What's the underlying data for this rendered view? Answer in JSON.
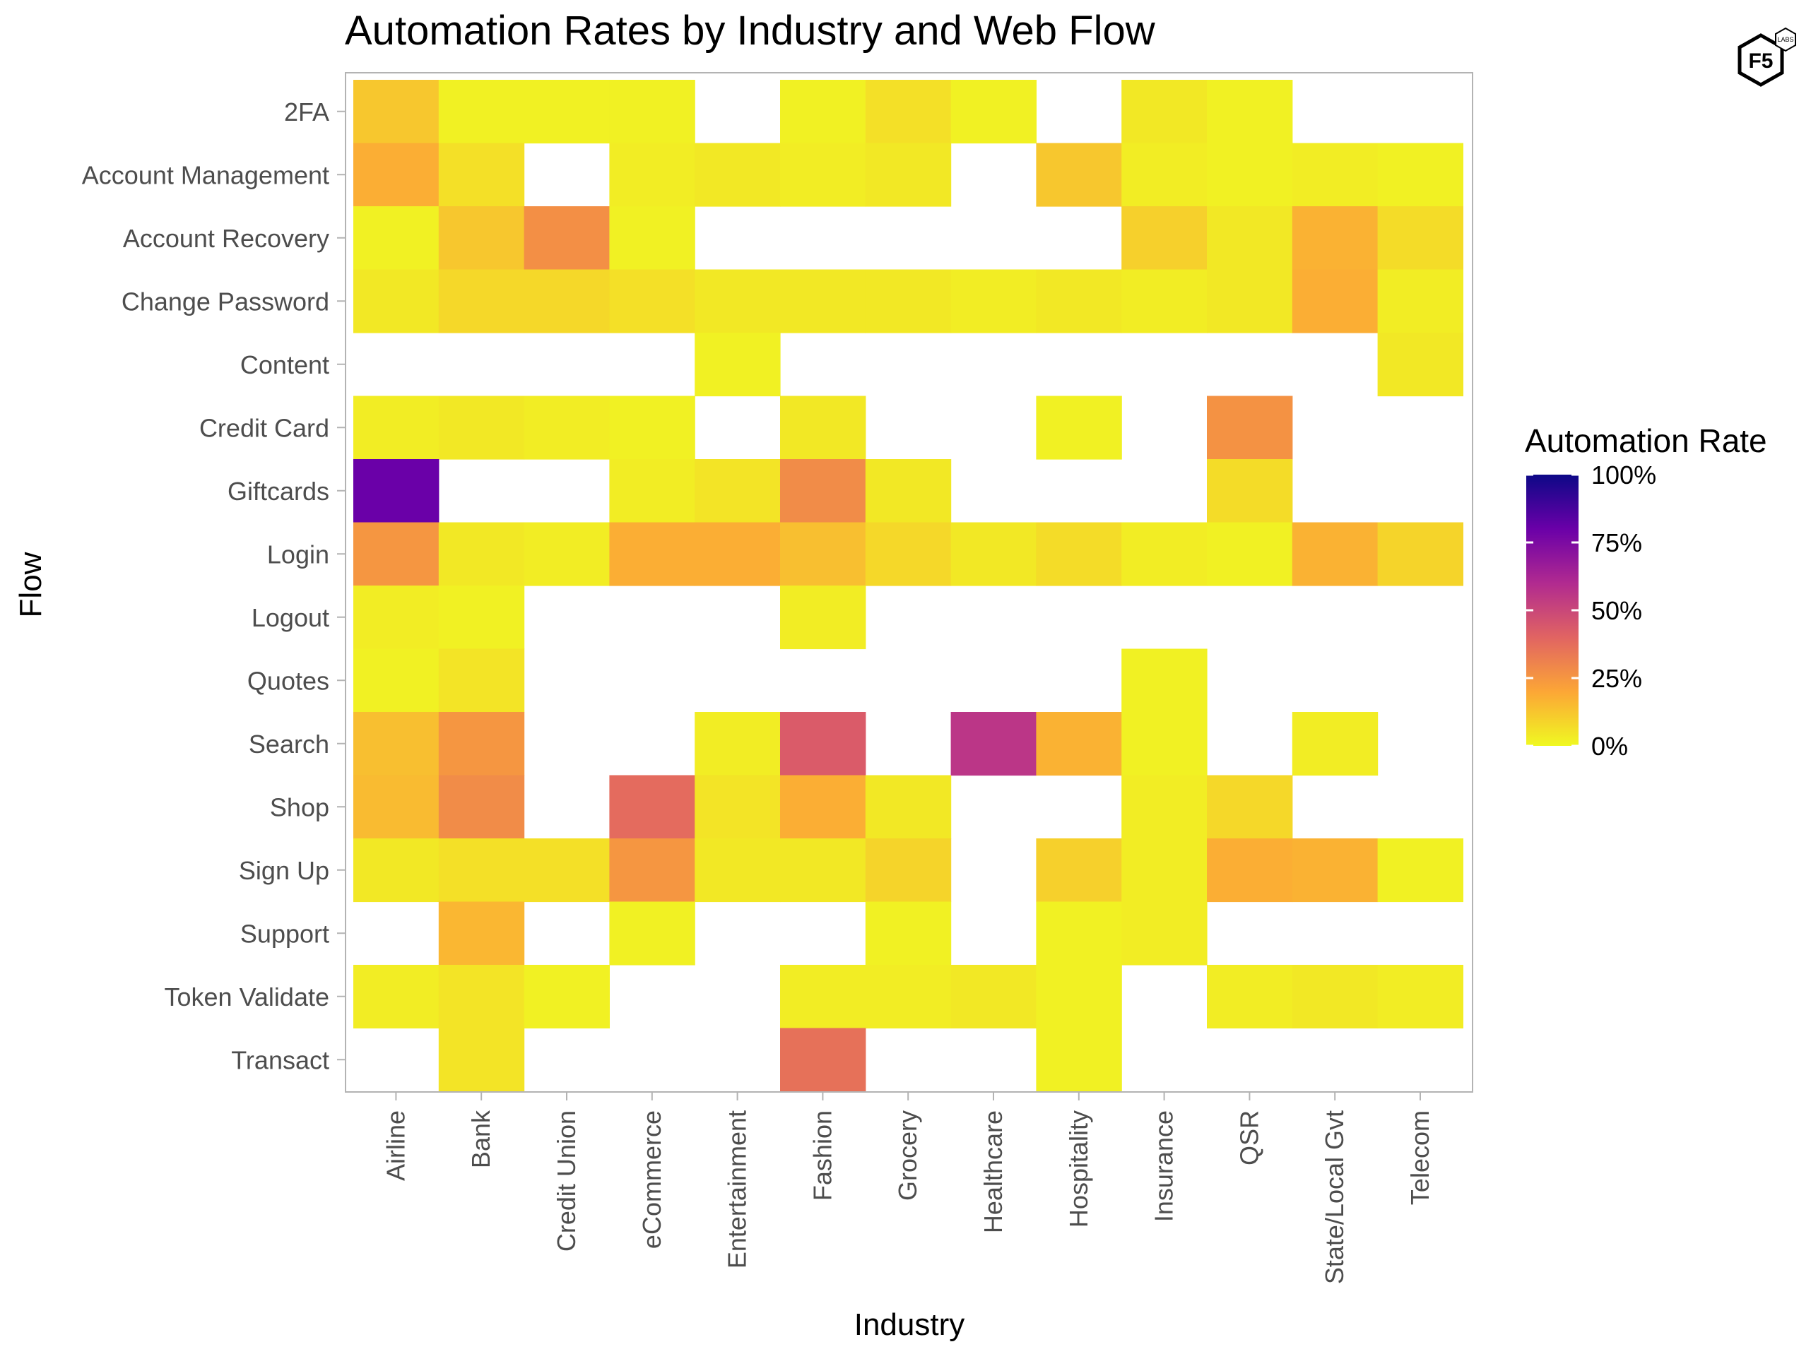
{
  "chart_data": {
    "type": "heatmap",
    "title": "Automation Rates by Industry and Web Flow",
    "xlabel": "Industry",
    "ylabel": "Flow",
    "x_categories": [
      "Airline",
      "Bank",
      "Credit Union",
      "eCommerce",
      "Entertainment",
      "Fashion",
      "Grocery",
      "Healthcare",
      "Hospitality",
      "Insurance",
      "QSR",
      "State/Local Gvt",
      "Telecom"
    ],
    "y_categories": [
      "2FA",
      "Account Management",
      "Account Recovery",
      "Change Password",
      "Content",
      "Credit Card",
      "Giftcards",
      "Login",
      "Logout",
      "Quotes",
      "Search",
      "Shop",
      "Sign Up",
      "Support",
      "Token Validate",
      "Transact"
    ],
    "values": [
      [
        0.12,
        0.02,
        0.02,
        0.02,
        null,
        0.02,
        0.06,
        0.02,
        null,
        0.04,
        0.02,
        null,
        null
      ],
      [
        0.18,
        0.06,
        null,
        0.03,
        0.04,
        0.03,
        0.04,
        null,
        0.12,
        0.03,
        0.02,
        0.03,
        0.02
      ],
      [
        0.02,
        0.12,
        0.27,
        0.02,
        null,
        null,
        null,
        null,
        null,
        0.1,
        0.04,
        0.17,
        0.07
      ],
      [
        0.04,
        0.08,
        0.08,
        0.06,
        0.04,
        0.04,
        0.04,
        0.03,
        0.04,
        0.03,
        0.04,
        0.18,
        0.03
      ],
      [
        null,
        null,
        null,
        null,
        0.02,
        null,
        null,
        null,
        null,
        null,
        null,
        null,
        0.04
      ],
      [
        0.03,
        0.04,
        0.03,
        0.02,
        null,
        0.04,
        null,
        null,
        0.02,
        null,
        0.26,
        null,
        null
      ],
      [
        0.8,
        null,
        null,
        0.03,
        0.05,
        0.28,
        0.04,
        null,
        null,
        null,
        0.07,
        null,
        null
      ],
      [
        0.25,
        0.04,
        0.03,
        0.18,
        0.18,
        0.14,
        0.08,
        0.04,
        0.07,
        0.03,
        0.02,
        0.17,
        0.09
      ],
      [
        0.03,
        0.02,
        null,
        null,
        null,
        0.03,
        null,
        null,
        null,
        null,
        null,
        null,
        null
      ],
      [
        0.02,
        0.05,
        null,
        null,
        null,
        null,
        null,
        null,
        null,
        0.02,
        null,
        null,
        null
      ],
      [
        0.14,
        0.25,
        null,
        null,
        0.03,
        0.43,
        null,
        0.56,
        0.17,
        0.02,
        null,
        0.03,
        null
      ],
      [
        0.15,
        0.28,
        null,
        0.38,
        0.05,
        0.18,
        0.04,
        null,
        null,
        0.03,
        0.08,
        null,
        null
      ],
      [
        0.04,
        0.06,
        0.06,
        0.25,
        0.04,
        0.04,
        0.09,
        null,
        0.1,
        0.03,
        0.18,
        0.17,
        0.02
      ],
      [
        null,
        0.16,
        null,
        0.02,
        null,
        null,
        0.02,
        null,
        0.02,
        0.03,
        null,
        null,
        null
      ],
      [
        0.03,
        0.05,
        0.02,
        null,
        null,
        0.03,
        0.03,
        0.04,
        0.02,
        null,
        0.03,
        0.04,
        0.03
      ],
      [
        null,
        0.05,
        null,
        null,
        null,
        0.36,
        null,
        null,
        0.02,
        null,
        null,
        null,
        null
      ]
    ],
    "value_range": [
      0,
      1
    ],
    "colorscale": "plasma",
    "grid": false,
    "legend": {
      "title": "Automation Rate",
      "placement": "right",
      "labels": [
        "100%",
        "75%",
        "50%",
        "25%",
        "0%"
      ],
      "label_values": [
        1.0,
        0.75,
        0.5,
        0.25,
        0.0
      ]
    }
  },
  "logo": {
    "text": "F5",
    "subtext": "LABS"
  }
}
